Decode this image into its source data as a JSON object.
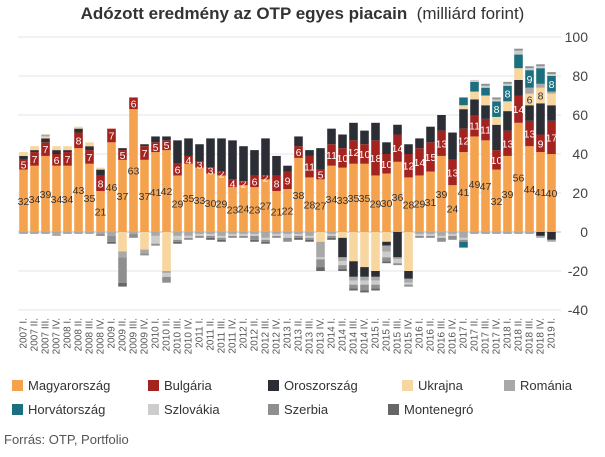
{
  "title_main": "Adózott eredmény az OTP egyes piacain",
  "title_unit": "(milliárd forint)",
  "source": "Forrás: OTP, Portfolio",
  "chart_data": {
    "type": "bar",
    "stacked": true,
    "ylim": [
      -40,
      100
    ],
    "yticks": [
      -40,
      -20,
      0,
      20,
      40,
      60,
      80,
      100
    ],
    "grid": true,
    "legend_position": "bottom",
    "colors": {
      "Magyarország": "#f4a24d",
      "Bulgária": "#a5231f",
      "Oroszország": "#2b2f35",
      "Ukrajna": "#f7d6a0",
      "Románia": "#a8a8a8",
      "Horvátország": "#1b6f7e",
      "Szlovákia": "#cccccc",
      "Szerbia": "#8f8f8f",
      "Montenegró": "#666666"
    },
    "categories": [
      "2007Q1",
      "2007Q2",
      "2007Q3",
      "2007Q4",
      "2008Q1",
      "2008Q2",
      "2008Q3",
      "2008Q4",
      "2009Q1",
      "2009Q2",
      "2009Q3",
      "2009Q4",
      "2010Q1",
      "2010Q2",
      "2010Q3",
      "2010Q4",
      "2011Q1",
      "2011Q2",
      "2011Q3",
      "2011Q4",
      "2012Q1",
      "2012Q2",
      "2012Q3",
      "2012Q4",
      "2013Q1",
      "2013Q2",
      "2013Q3",
      "2013Q4",
      "2014Q1",
      "2014Q2",
      "2014Q3",
      "2014Q4",
      "2015Q1",
      "2015Q2",
      "2015Q3",
      "2015Q4",
      "2016Q1",
      "2016Q2",
      "2016Q3",
      "2016Q4",
      "2017Q1",
      "2017Q2",
      "2017Q3",
      "2017Q4",
      "2018Q1",
      "2018Q2",
      "2018Q3",
      "2018Q4",
      "2019Q1"
    ],
    "x_tick_labels": [
      "2007 I.",
      "2007 II.",
      "2007 III.",
      "2007 IV.",
      "2008 I.",
      "2008 II.",
      "2008 III.",
      "2008 IV.",
      "2009 I.",
      "2009 II.",
      "2009 III.",
      "2009 IV.",
      "2010 I.",
      "2010 II.",
      "2010 III.",
      "2010 IV.",
      "2011 I.",
      "2011 II.",
      "2011 III.",
      "2011 IV.",
      "2012 I.",
      "2012 II.",
      "2012 III.",
      "2012 IV.",
      "2013 I.",
      "2013 II.",
      "2013 III.",
      "2013 IV.",
      "2014 I.",
      "2014 II.",
      "2014 III.",
      "2014 IV.",
      "2015 I.",
      "2015 II.",
      "2015 III.",
      "2015 IV.",
      "2016 I.",
      "2016 II.",
      "2016 III.",
      "2016 IV.",
      "2017 I.",
      "2017 II.",
      "2017 III.",
      "2017 IV.",
      "2018 I.",
      "2018 II.",
      "2018 III.",
      "2018 IV.",
      "2019 I."
    ],
    "series": [
      {
        "name": "Magyarország",
        "values": [
          32,
          34,
          39,
          34,
          34,
          43,
          35,
          21,
          46,
          37,
          63,
          37,
          41,
          42,
          29,
          35,
          33,
          30,
          29,
          23,
          24,
          23,
          27,
          21,
          22,
          38,
          28,
          27,
          34,
          33,
          35,
          35,
          29,
          30,
          36,
          28,
          29,
          31,
          39,
          24,
          41,
          49,
          47,
          32,
          39,
          56,
          44,
          41,
          40
        ],
        "labels": [
          32,
          34,
          39,
          34,
          34,
          43,
          35,
          21,
          46,
          37,
          63,
          37,
          41,
          42,
          29,
          35,
          33,
          30,
          29,
          23,
          24,
          23,
          27,
          21,
          22,
          38,
          28,
          27,
          34,
          33,
          35,
          35,
          29,
          30,
          36,
          28,
          29,
          31,
          39,
          24,
          41,
          49,
          47,
          32,
          39,
          56,
          44,
          41,
          40
        ]
      },
      {
        "name": "Bulgária",
        "values": [
          5,
          7,
          7,
          6,
          7,
          8,
          7,
          8,
          7,
          5,
          6,
          7,
          5,
          5,
          6,
          4,
          3,
          3,
          2,
          4,
          2,
          6,
          2,
          8,
          9,
          6,
          11,
          5,
          11,
          10,
          12,
          10,
          18,
          10,
          14,
          12,
          14,
          15,
          13,
          13,
          12,
          11,
          11,
          10,
          13,
          14,
          13,
          9,
          17
        ],
        "labels": [
          5,
          7,
          7,
          6,
          7,
          8,
          7,
          8,
          7,
          5,
          6,
          7,
          5,
          5,
          6,
          4,
          3,
          3,
          2,
          4,
          2,
          6,
          2,
          8,
          9,
          6,
          11,
          5,
          11,
          10,
          12,
          10,
          18,
          10,
          14,
          12,
          14,
          15,
          13,
          13,
          12,
          11,
          11,
          10,
          13,
          14,
          13,
          9,
          17
        ]
      },
      {
        "name": "Oroszország",
        "values": [
          2,
          1,
          2,
          2,
          1,
          2,
          2,
          3,
          0,
          1,
          0,
          1,
          3,
          2,
          12,
          9,
          9,
          15,
          17,
          20,
          18,
          13,
          19,
          10,
          3,
          5,
          3,
          11,
          8,
          7,
          9,
          7,
          9,
          6,
          5,
          5,
          5,
          8,
          8,
          14,
          10,
          8,
          7,
          13,
          10,
          8,
          8,
          16,
          8
        ],
        "labels": []
      },
      {
        "name": "Ukrajna",
        "values": [
          2,
          2,
          1,
          2,
          2,
          1,
          2,
          1,
          0,
          0,
          0,
          0,
          0,
          0,
          0,
          0,
          0,
          0,
          0,
          0,
          0,
          0,
          0,
          0,
          0,
          0,
          0,
          0,
          0,
          0,
          0,
          0,
          0,
          0,
          0,
          0,
          0,
          0,
          0,
          0,
          2,
          4,
          5,
          4,
          5,
          6,
          6,
          8,
          6
        ],
        "labels": [
          0,
          0,
          0,
          0,
          0,
          0,
          0,
          0,
          0,
          0,
          0,
          0,
          0,
          0,
          0,
          0,
          0,
          0,
          0,
          0,
          0,
          0,
          0,
          0,
          0,
          0,
          0,
          0,
          0,
          0,
          0,
          0,
          0,
          0,
          0,
          0,
          0,
          0,
          0,
          0,
          0,
          0,
          0,
          0,
          0,
          0,
          6,
          8,
          0
        ]
      },
      {
        "name": "Románia",
        "values": [
          0,
          0,
          1,
          0,
          0,
          0,
          0,
          0,
          0,
          0,
          0,
          0,
          0,
          0,
          0,
          0,
          0,
          0,
          0,
          0,
          0,
          0,
          0,
          0,
          0,
          0,
          0,
          0,
          0,
          0,
          0,
          0,
          0,
          0,
          0,
          0,
          0,
          0,
          0,
          0,
          0,
          0,
          0,
          0,
          0,
          0,
          3,
          2,
          1
        ],
        "labels": []
      },
      {
        "name": "Horvátország",
        "values": [
          0,
          0,
          0,
          0,
          0,
          0,
          0,
          0,
          0,
          0,
          0,
          0,
          0,
          0,
          0,
          0,
          0,
          0,
          0,
          0,
          0,
          0,
          0,
          0,
          0,
          0,
          0,
          0,
          0,
          0,
          0,
          0,
          0,
          0,
          0,
          0,
          0,
          0,
          0,
          0,
          4,
          5,
          4,
          8,
          8,
          7,
          9,
          8,
          8
        ],
        "labels": [
          0,
          0,
          0,
          0,
          0,
          0,
          0,
          0,
          0,
          0,
          0,
          0,
          0,
          0,
          0,
          0,
          0,
          0,
          0,
          0,
          0,
          0,
          0,
          0,
          0,
          0,
          0,
          0,
          0,
          0,
          0,
          0,
          0,
          0,
          0,
          0,
          0,
          0,
          0,
          0,
          0,
          0,
          0,
          8,
          8,
          0,
          9,
          0,
          8
        ]
      },
      {
        "name": "Szlovákia",
        "values": [
          0,
          0,
          0,
          0,
          0,
          0,
          0,
          0,
          0,
          0,
          0,
          0,
          0,
          0,
          0,
          0,
          0,
          0,
          0,
          0,
          0,
          0,
          0,
          0,
          0,
          0,
          0,
          0,
          0,
          0,
          0,
          0,
          0,
          0,
          0,
          0,
          0,
          0,
          0,
          0,
          0,
          1,
          1,
          1,
          1,
          2,
          1,
          1,
          1
        ],
        "labels": []
      },
      {
        "name": "Szerbia",
        "values": [
          0,
          0,
          0,
          0,
          0,
          0,
          0,
          0,
          0,
          0,
          0,
          0,
          0,
          0,
          0,
          0,
          0,
          0,
          0,
          0,
          0,
          0,
          0,
          0,
          0,
          0,
          0,
          0,
          0,
          0,
          0,
          0,
          0,
          0,
          0,
          0,
          0,
          0,
          0,
          0,
          0,
          0,
          1,
          1,
          1,
          1,
          1,
          1,
          1
        ],
        "labels": []
      },
      {
        "name": "Montenegró",
        "values": [
          0,
          0,
          0,
          0,
          0,
          0,
          0,
          0,
          0,
          0,
          0,
          0,
          0,
          0,
          0,
          0,
          0,
          0,
          0,
          0,
          0,
          0,
          0,
          0,
          0,
          0,
          0,
          0,
          0,
          0,
          0,
          0,
          0,
          0,
          0,
          0,
          0,
          0,
          0,
          0,
          0,
          0,
          0,
          0,
          0,
          0,
          0,
          0,
          0
        ],
        "labels": []
      }
    ],
    "negatives": [
      {
        "name": "Ukrajna",
        "values": [
          0,
          0,
          0,
          0,
          0,
          0,
          0,
          0,
          0,
          -10,
          0,
          -9,
          0,
          -20,
          0,
          0,
          0,
          0,
          0,
          0,
          0,
          0,
          0,
          0,
          0,
          0,
          0,
          -5,
          0,
          -3,
          -15,
          -18,
          -20,
          -5,
          0,
          -20,
          0,
          0,
          0,
          0,
          0,
          0,
          0,
          0,
          0,
          0,
          0,
          0,
          0
        ]
      },
      {
        "name": "Oroszország",
        "values": [
          0,
          0,
          0,
          0,
          0,
          0,
          0,
          0,
          0,
          0,
          0,
          0,
          0,
          0,
          0,
          0,
          0,
          0,
          0,
          0,
          0,
          0,
          0,
          0,
          0,
          0,
          0,
          0,
          0,
          -10,
          -8,
          -5,
          -3,
          -2,
          -13,
          -4,
          0,
          0,
          0,
          0,
          0,
          0,
          0,
          0,
          0,
          0,
          0,
          -2,
          -4
        ]
      },
      {
        "name": "Románia",
        "values": [
          -1,
          -1,
          -1,
          -2,
          -1,
          -1,
          -1,
          -1,
          -2,
          -3,
          -1,
          -2,
          -2,
          -1,
          -2,
          -2,
          -1,
          -1,
          -2,
          -1,
          -1,
          -1,
          -3,
          -1,
          -1,
          -1,
          -2,
          -8,
          -1,
          -2,
          -2,
          -2,
          -2,
          -3,
          -1,
          -2,
          -1,
          -1,
          -2,
          -1,
          -3,
          -1,
          -1,
          -1,
          -1,
          -1,
          -1,
          -1,
          -1
        ]
      },
      {
        "name": "Szlovákia",
        "values": [
          0,
          0,
          0,
          0,
          0,
          0,
          0,
          0,
          0,
          0,
          0,
          0,
          -4,
          -2,
          -2,
          -1,
          -1,
          -1,
          -1,
          -1,
          -1,
          -1,
          -1,
          -1,
          -2,
          -1,
          -1,
          -1,
          -1,
          -2,
          -2,
          -2,
          -2,
          -3,
          -2,
          -1,
          -1,
          -1,
          -1,
          -1,
          -1,
          0,
          0,
          0,
          0,
          0,
          0,
          0,
          0
        ]
      },
      {
        "name": "Szerbia",
        "values": [
          0,
          0,
          0,
          0,
          0,
          0,
          0,
          -1,
          -3,
          -13,
          -2,
          -1,
          -1,
          -3,
          -1,
          -1,
          -1,
          -1,
          -1,
          -1,
          -1,
          -2,
          -1,
          -1,
          -2,
          -1,
          -1,
          -4,
          -1,
          -2,
          -2,
          -3,
          -2,
          -2,
          -1,
          -1,
          -1,
          -1,
          -2,
          -2,
          -1,
          0,
          0,
          0,
          0,
          0,
          0,
          0,
          0
        ]
      },
      {
        "name": "Montenegró",
        "values": [
          0,
          0,
          0,
          0,
          0,
          0,
          0,
          0,
          -1,
          -2,
          0,
          0,
          0,
          0,
          -1,
          0,
          0,
          -1,
          -1,
          0,
          0,
          -1,
          -1,
          0,
          0,
          -1,
          -1,
          -2,
          -1,
          -1,
          -1,
          -1,
          -1,
          -1,
          0,
          0,
          0,
          0,
          0,
          0,
          0,
          0,
          0,
          0,
          0,
          0,
          0,
          0,
          0
        ]
      },
      {
        "name": "Horvátország",
        "values": [
          0,
          0,
          0,
          0,
          0,
          0,
          0,
          0,
          0,
          0,
          0,
          0,
          0,
          0,
          0,
          0,
          0,
          0,
          0,
          0,
          0,
          0,
          0,
          0,
          0,
          0,
          0,
          0,
          0,
          0,
          0,
          0,
          0,
          0,
          0,
          0,
          0,
          0,
          0,
          0,
          -3,
          0,
          0,
          0,
          0,
          0,
          0,
          0,
          0
        ]
      }
    ]
  },
  "legend": [
    {
      "label": "Magyarország",
      "color": "#f4a24d"
    },
    {
      "label": "Bulgária",
      "color": "#a5231f"
    },
    {
      "label": "Oroszország",
      "color": "#2b2f35"
    },
    {
      "label": "Ukrajna",
      "color": "#f7d6a0"
    },
    {
      "label": "Románia",
      "color": "#a8a8a8"
    },
    {
      "label": "Horvátország",
      "color": "#1b6f7e"
    },
    {
      "label": "Szlovákia",
      "color": "#cccccc"
    },
    {
      "label": "Szerbia",
      "color": "#8f8f8f"
    },
    {
      "label": "Montenegró",
      "color": "#666666"
    }
  ]
}
